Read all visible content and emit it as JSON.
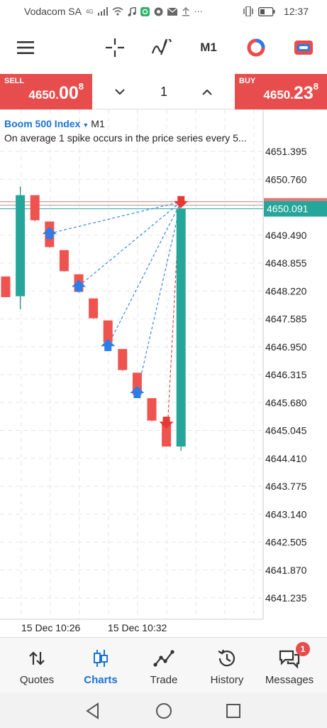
{
  "status_bar": {
    "carrier": "Vodacom SA",
    "network_badge": "4G",
    "time": "12:37",
    "icons": [
      "signal-icon",
      "wifi-icon",
      "music-icon",
      "app-icon",
      "app-icon",
      "mail-icon",
      "upload-icon",
      "more-icon",
      "vibrate-icon",
      "battery-icon"
    ]
  },
  "toolbar": {
    "timeframe": "M1",
    "icons": [
      "menu-icon",
      "crosshair-icon",
      "indicators-icon",
      "timeframe",
      "analytics-icon",
      "trade-icon"
    ]
  },
  "trade": {
    "sell_label": "SELL",
    "sell_price_main": "4650.",
    "sell_price_big": "00",
    "sell_price_sup": "8",
    "buy_label": "BUY",
    "buy_price_main": "4650.",
    "buy_price_big": "23",
    "buy_price_sup": "8",
    "lot": "1"
  },
  "chart": {
    "symbol": "Boom 500 Index",
    "timeframe": "M1",
    "description": "On average 1 spike occurs in the price series every 5...",
    "current_price": "4650.091",
    "price_labels": [
      "4651.395",
      "4650.760",
      "4649.490",
      "4648.855",
      "4648.220",
      "4647.585",
      "4646.950",
      "4646.315",
      "4645.680",
      "4645.045",
      "4644.410",
      "4643.775",
      "4643.140",
      "4642.505",
      "4641.870",
      "4641.235"
    ],
    "time_labels": [
      "15 Dec 10:26",
      "15 Dec 10:32"
    ],
    "colors": {
      "bull": "#26a69a",
      "bear": "#ef5350",
      "arrow_buy": "#2b7de9",
      "arrow_sell": "#e53935",
      "grid": "#e6e6e6"
    }
  },
  "chart_data": {
    "type": "candlestick",
    "title": "Boom 500 Index",
    "timeframe": "M1",
    "ylim": [
      4640.75,
      4652.35
    ],
    "y_ticks": [
      4651.395,
      4650.76,
      4649.49,
      4648.855,
      4648.22,
      4647.585,
      4646.95,
      4646.315,
      4645.68,
      4645.045,
      4644.41,
      4643.775,
      4643.14,
      4642.505,
      4641.87,
      4641.235
    ],
    "x_tick_labels": [
      "15 Dec 10:26",
      "15 Dec 10:32"
    ],
    "current_price": 4650.091,
    "grid": true,
    "candles": [
      {
        "o": 4648.55,
        "h": 4648.55,
        "l": 4648.08,
        "c": 4648.08
      },
      {
        "o": 4648.1,
        "h": 4650.6,
        "l": 4647.8,
        "c": 4650.4
      },
      {
        "o": 4650.4,
        "h": 4650.4,
        "l": 4649.8,
        "c": 4649.83
      },
      {
        "o": 4649.8,
        "h": 4649.8,
        "l": 4649.2,
        "c": 4649.22
      },
      {
        "o": 4649.15,
        "h": 4649.15,
        "l": 4648.66,
        "c": 4648.67
      },
      {
        "o": 4648.6,
        "h": 4648.6,
        "l": 4648.18,
        "c": 4648.2
      },
      {
        "o": 4648.05,
        "h": 4648.05,
        "l": 4647.58,
        "c": 4647.6
      },
      {
        "o": 4647.55,
        "h": 4647.55,
        "l": 4647.03,
        "c": 4647.05
      },
      {
        "o": 4646.9,
        "h": 4646.9,
        "l": 4646.4,
        "c": 4646.42
      },
      {
        "o": 4646.36,
        "h": 4646.36,
        "l": 4645.84,
        "c": 4645.86
      },
      {
        "o": 4645.78,
        "h": 4645.78,
        "l": 4645.25,
        "c": 4645.27
      },
      {
        "o": 4645.25,
        "h": 4645.25,
        "l": 4644.68,
        "c": 4644.68
      },
      {
        "o": 4644.68,
        "h": 4650.1,
        "l": 4644.58,
        "c": 4650.09
      }
    ],
    "buy_arrows": [
      {
        "candle": 3,
        "price": 4649.53
      },
      {
        "candle": 5,
        "price": 4648.33
      },
      {
        "candle": 7,
        "price": 4646.98
      },
      {
        "candle": 9,
        "price": 4645.91
      }
    ],
    "sell_arrows": [
      {
        "candle": 12,
        "price": 4650.25
      },
      {
        "candle": 11,
        "price": 4645.23
      }
    ]
  },
  "bottom_nav": {
    "items": [
      {
        "label": "Quotes",
        "icon": "quotes-icon",
        "active": false
      },
      {
        "label": "Charts",
        "icon": "charts-icon",
        "active": true
      },
      {
        "label": "Trade",
        "icon": "trade-line-icon",
        "active": false
      },
      {
        "label": "History",
        "icon": "history-icon",
        "active": false
      },
      {
        "label": "Messages",
        "icon": "messages-icon",
        "active": false,
        "badge": "1"
      }
    ]
  },
  "system_nav": [
    "back-icon",
    "home-icon",
    "recents-icon"
  ]
}
